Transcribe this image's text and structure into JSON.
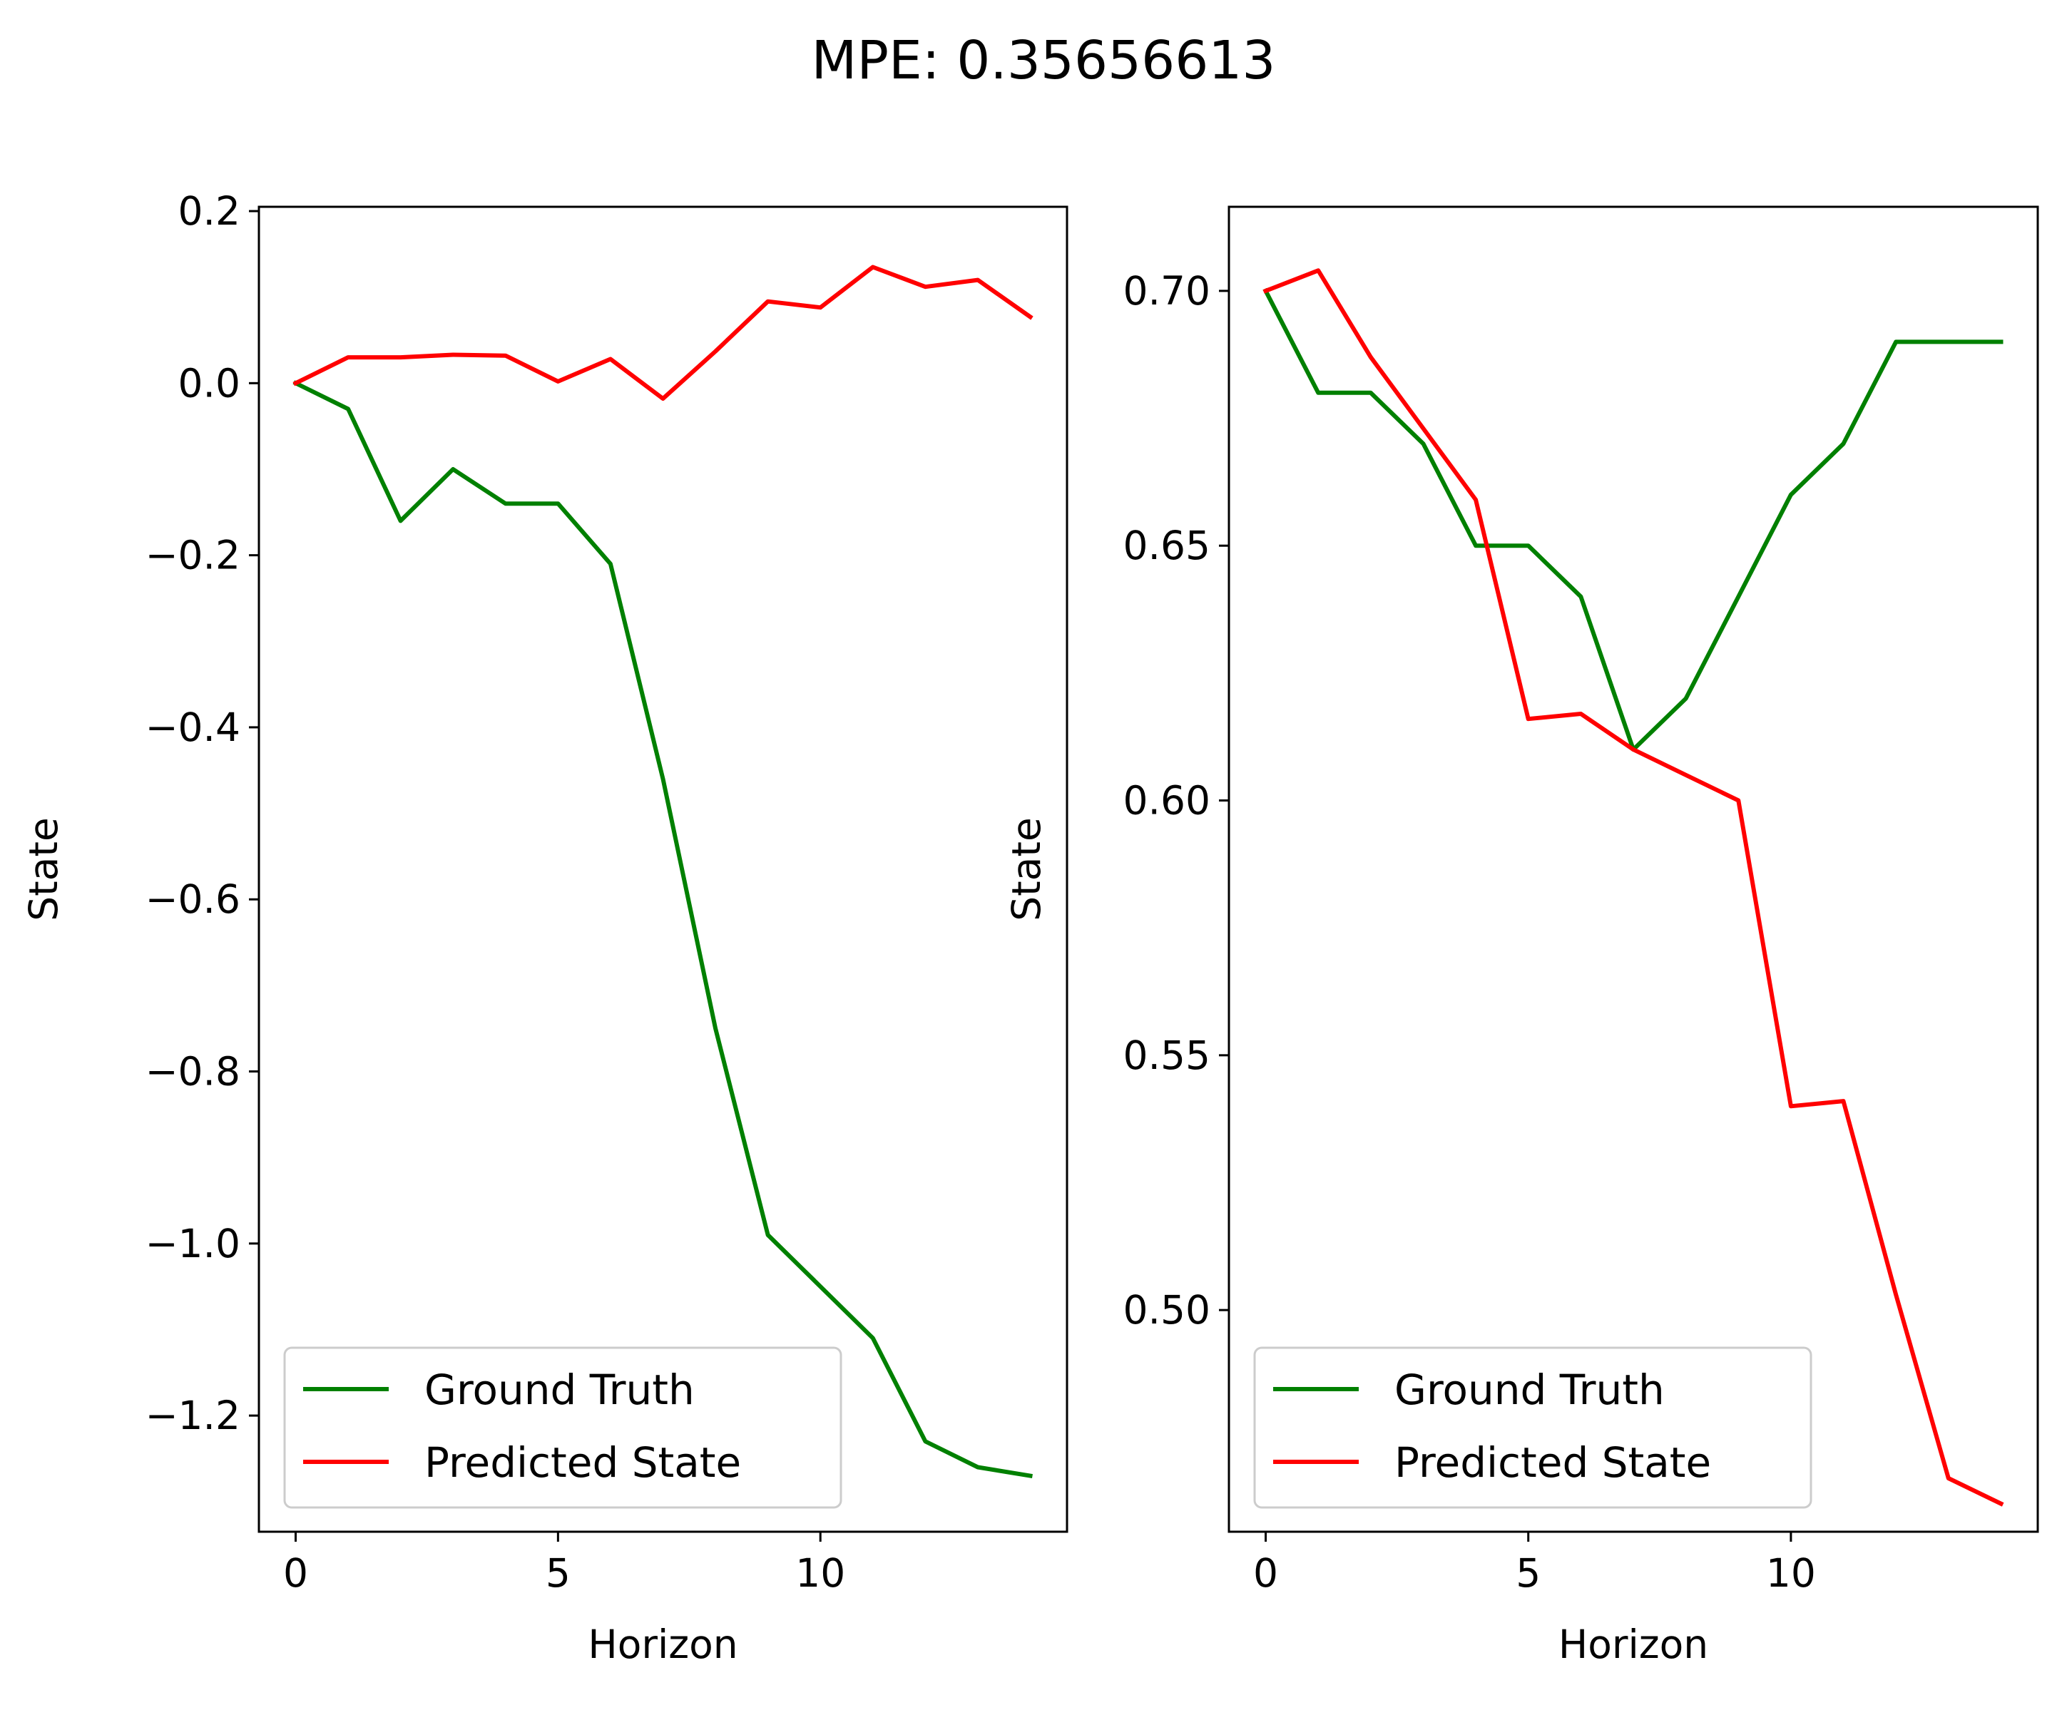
{
  "title": "MPE: 0.35656613",
  "chart_data": [
    {
      "type": "line",
      "xlabel": "Horizon",
      "ylabel": "State",
      "xlim": [
        -0.7,
        14.7
      ],
      "ylim": [
        -1.335,
        0.205
      ],
      "xticks": [
        0,
        5,
        10
      ],
      "xtick_labels": [
        "0",
        "5",
        "10"
      ],
      "yticks": [
        0.2,
        0.0,
        -0.2,
        -0.4,
        -0.6,
        -0.8,
        -1.0,
        -1.2
      ],
      "ytick_labels": [
        "0.2",
        "0.0",
        "−0.2",
        "−0.4",
        "−0.6",
        "−0.8",
        "−1.0",
        "−1.2"
      ],
      "legend_position": "lower-left",
      "x": [
        0,
        1,
        2,
        3,
        4,
        5,
        6,
        7,
        8,
        9,
        10,
        11,
        12,
        13,
        14
      ],
      "series": [
        {
          "name": "Ground Truth",
          "color": "#008000",
          "values": [
            0.0,
            -0.03,
            -0.16,
            -0.1,
            -0.14,
            -0.14,
            -0.21,
            -0.46,
            -0.75,
            -0.99,
            -1.05,
            -1.11,
            -1.23,
            -1.26,
            -1.27
          ]
        },
        {
          "name": "Predicted State",
          "color": "#ff0000",
          "values": [
            0.0,
            0.03,
            0.03,
            0.033,
            0.032,
            0.002,
            0.028,
            -0.018,
            0.037,
            0.095,
            0.088,
            0.135,
            0.112,
            0.12,
            0.077
          ]
        }
      ]
    },
    {
      "type": "line",
      "xlabel": "Horizon",
      "ylabel": "State",
      "xlim": [
        -0.7,
        14.7
      ],
      "ylim": [
        0.4565,
        0.7165
      ],
      "xticks": [
        0,
        5,
        10
      ],
      "xtick_labels": [
        "0",
        "5",
        "10"
      ],
      "yticks": [
        0.7,
        0.65,
        0.6,
        0.55,
        0.5
      ],
      "ytick_labels": [
        "0.70",
        "0.65",
        "0.60",
        "0.55",
        "0.50"
      ],
      "legend_position": "lower-left",
      "x": [
        0,
        1,
        2,
        3,
        4,
        5,
        6,
        7,
        8,
        9,
        10,
        11,
        12,
        13,
        14
      ],
      "series": [
        {
          "name": "Ground Truth",
          "color": "#008000",
          "values": [
            0.7,
            0.68,
            0.68,
            0.67,
            0.65,
            0.65,
            0.64,
            0.61,
            0.62,
            0.64,
            0.66,
            0.67,
            0.69,
            0.69,
            0.69
          ]
        },
        {
          "name": "Predicted State",
          "color": "#ff0000",
          "values": [
            0.7,
            0.704,
            0.687,
            0.673,
            0.659,
            0.616,
            0.617,
            0.61,
            0.605,
            0.6,
            0.54,
            0.541,
            0.503,
            0.467,
            0.462
          ]
        }
      ]
    }
  ]
}
